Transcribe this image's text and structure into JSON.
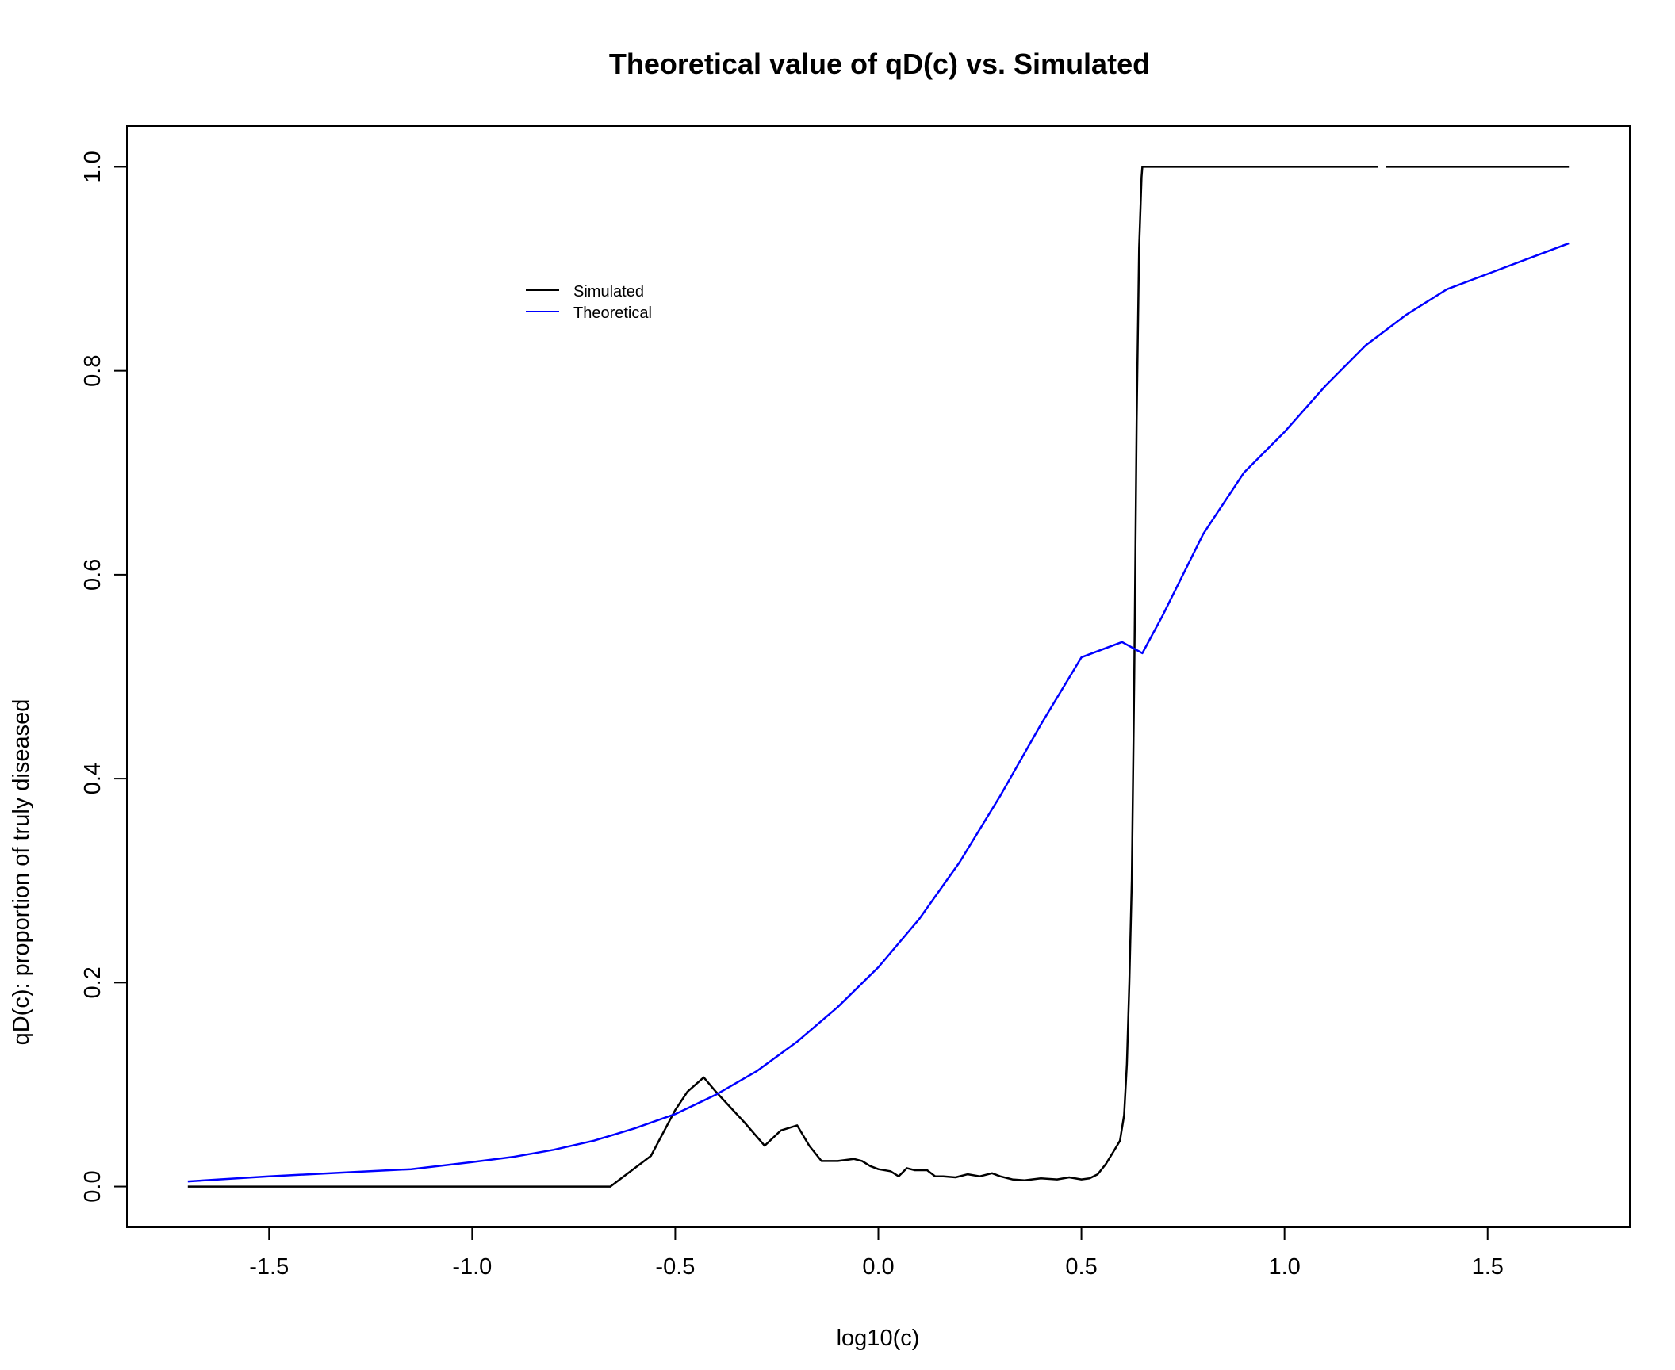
{
  "chart_data": {
    "type": "line",
    "title": "Theoretical value of qD(c) vs. Simulated",
    "xlabel": "log10(c)",
    "ylabel": "qD(c): proportion of truly diseased",
    "xlim": [
      -1.85,
      1.85
    ],
    "ylim": [
      -0.04,
      1.04
    ],
    "x_ticks": [
      -1.5,
      -1.0,
      -0.5,
      0.0,
      0.5,
      1.0,
      1.5
    ],
    "x_tick_labels": [
      "-1.5",
      "-1.0",
      "-0.5",
      "0.0",
      "0.5",
      "1.0",
      "1.5"
    ],
    "y_ticks": [
      0.0,
      0.2,
      0.4,
      0.6,
      0.8,
      1.0
    ],
    "y_tick_labels": [
      "0.0",
      "0.2",
      "0.4",
      "0.6",
      "0.8",
      "1.0"
    ],
    "grid": false,
    "legend_position": "top-left (inside plot)",
    "legend": [
      "Simulated",
      "Theoretical"
    ],
    "series": [
      {
        "name": "Simulated",
        "color": "#000000",
        "x": [
          -1.7,
          -0.66,
          -0.56,
          -0.5,
          -0.47,
          -0.43,
          -0.4,
          -0.33,
          -0.28,
          -0.24,
          -0.2,
          -0.17,
          -0.14,
          -0.1,
          -0.06,
          -0.04,
          -0.02,
          0.0,
          0.03,
          0.05,
          0.07,
          0.09,
          0.12,
          0.14,
          0.16,
          0.19,
          0.22,
          0.25,
          0.28,
          0.3,
          0.33,
          0.36,
          0.4,
          0.44,
          0.47,
          0.5,
          0.52,
          0.54,
          0.56,
          0.58,
          0.595,
          0.605,
          0.612,
          0.618,
          0.624,
          0.63,
          0.636,
          0.642,
          0.648,
          0.65,
          0.66,
          1.23
        ],
        "y": [
          0.0,
          0.0,
          0.03,
          0.075,
          0.093,
          0.107,
          0.093,
          0.063,
          0.04,
          0.055,
          0.06,
          0.04,
          0.025,
          0.025,
          0.027,
          0.025,
          0.02,
          0.017,
          0.015,
          0.01,
          0.018,
          0.016,
          0.016,
          0.01,
          0.01,
          0.009,
          0.012,
          0.01,
          0.013,
          0.01,
          0.007,
          0.006,
          0.008,
          0.007,
          0.009,
          0.007,
          0.008,
          0.012,
          0.022,
          0.035,
          0.045,
          0.07,
          0.12,
          0.2,
          0.3,
          0.5,
          0.75,
          0.92,
          0.99,
          1.0,
          1.0,
          1.0
        ]
      },
      {
        "name": "",
        "color": "#000000",
        "x": [
          1.25,
          1.7
        ],
        "y": [
          1.0,
          1.0
        ]
      },
      {
        "name": "Theoretical",
        "color": "#0000ff",
        "x": [
          -1.7,
          -1.5,
          -1.3,
          -1.15,
          -1.0,
          -0.9,
          -0.8,
          -0.7,
          -0.6,
          -0.5,
          -0.4,
          -0.3,
          -0.2,
          -0.1,
          0.0,
          0.1,
          0.2,
          0.3,
          0.4,
          0.5,
          0.6,
          0.65,
          0.7,
          0.8,
          0.9,
          1.0,
          1.1,
          1.2,
          1.3,
          1.4,
          1.5,
          1.6,
          1.7
        ],
        "y": [
          0.005,
          0.01,
          0.014,
          0.017,
          0.024,
          0.029,
          0.036,
          0.045,
          0.057,
          0.071,
          0.09,
          0.113,
          0.142,
          0.176,
          0.215,
          0.262,
          0.318,
          0.383,
          0.453,
          0.519,
          0.534,
          0.523,
          0.56,
          0.64,
          0.7,
          0.74,
          0.785,
          0.825,
          0.855,
          0.88,
          0.895,
          0.91,
          0.925
        ]
      }
    ]
  }
}
